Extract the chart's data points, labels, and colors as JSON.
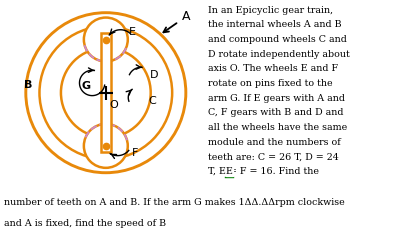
{
  "fig_width": 4.07,
  "fig_height": 2.38,
  "dpi": 100,
  "bg_color": "#ffffff",
  "orange": "#E8890A",
  "purple_dashed": "#CC88CC",
  "main_text_lines": [
    "In an Epicyclic gear train,",
    "the internal wheels A and B",
    "and compound wheels C and",
    "D rotate independently about",
    "axis O. The wheels E and F",
    "rotate on pins fixed to the",
    "arm G. If E gears with A and",
    "C, F gears with B and D and",
    "all the wheels have the same",
    "module and the numbers of",
    "teeth are: C = 26 T, D = 24",
    "T, E = F = 16. Find the"
  ],
  "bottom_text_lines": [
    "number of teeth on A and B. If the arm G makes 1ΔΔ.ΔΔrpm clockwise",
    "and A is fixed, find the speed of B"
  ],
  "label_A": "A",
  "label_B": "B",
  "label_C": "C",
  "label_D": "D",
  "label_E": "E",
  "label_F": "F",
  "label_G": "G",
  "label_O": "O"
}
